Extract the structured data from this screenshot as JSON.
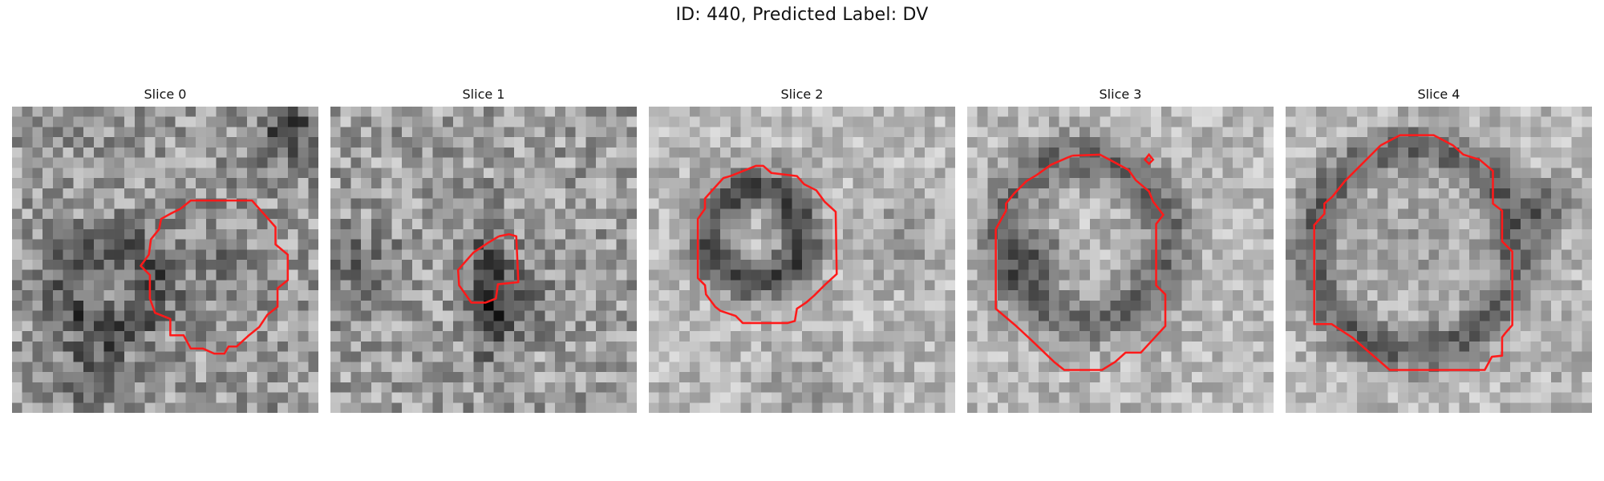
{
  "figure": {
    "title": "ID: 440, Predicted Label: DV"
  },
  "panels": [
    {
      "title": "Slice 0"
    },
    {
      "title": "Slice 1"
    },
    {
      "title": "Slice 2"
    },
    {
      "title": "Slice 3"
    },
    {
      "title": "Slice 4"
    }
  ],
  "colors": {
    "contour": "#ff1a1a"
  }
}
